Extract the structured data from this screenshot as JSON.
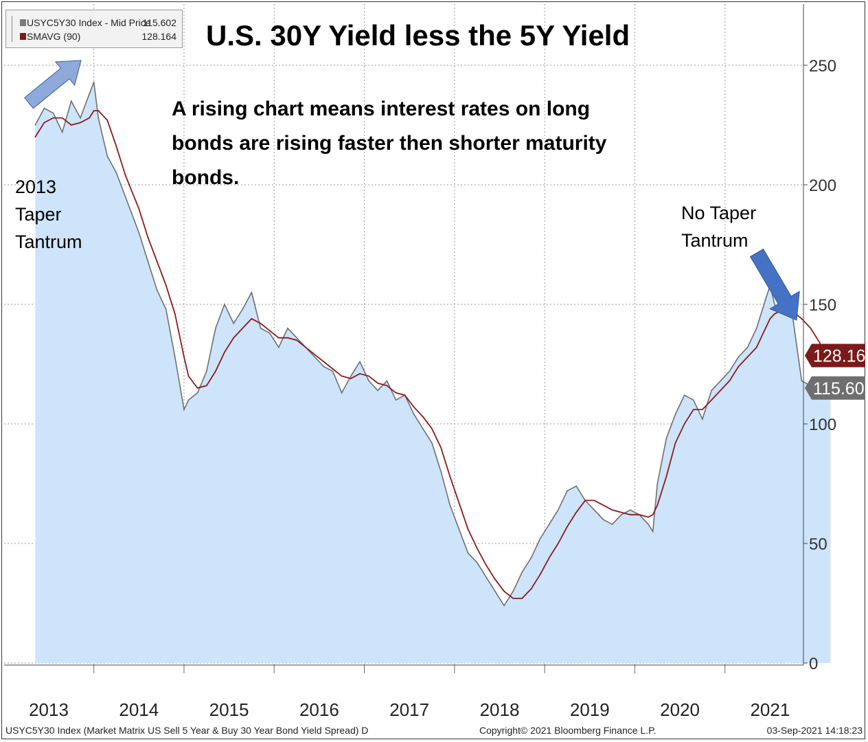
{
  "title": "U.S. 30Y Yield less the 5Y Yield",
  "legend": {
    "items": [
      {
        "label": "USYC5Y30 Index - Mid Price",
        "value": "115.602",
        "color": "#7a7a7a"
      },
      {
        "label": "SMAVG (90)",
        "value": "128.164",
        "color": "#7a1a1a"
      }
    ]
  },
  "annotation": "A rising chart means interest rates on long bonds are rising faster then shorter maturity bonds.",
  "annotation_lines": [
    "A rising chart means interest rates on long",
    "bonds are rising faster then shorter maturity",
    "bonds."
  ],
  "notes": {
    "left": "2013\nTaper\nTantrum",
    "right": "No Taper\nTantrum"
  },
  "footer": {
    "left": "USYC5Y30 Index (Market Matrix US Sell 5 Year & Buy 30 Year Bond Yield Spread)  D",
    "center": "Copyright© 2021 Bloomberg Finance L.P.",
    "right": "03-Sep-2021 14:18:23"
  },
  "colors": {
    "area_fill": "#cde4fb",
    "price_line": "#6f6f6f",
    "smavg_line": "#8b1a1a",
    "arrow_fill": "#4472c4",
    "arrow_fill_light": "#8eaadb",
    "price_tag": "#6f6f6f",
    "smavg_tag": "#7a1a1a"
  },
  "chart_data": {
    "type": "line",
    "title": "U.S. 30Y Yield less the 5Y Yield",
    "xlabel": "",
    "ylabel": "",
    "ylim": [
      0,
      270
    ],
    "yticks": [
      0,
      50,
      100,
      150,
      200,
      250
    ],
    "xlim": [
      2012.85,
      2021.7
    ],
    "xticks": [
      2013,
      2014,
      2015,
      2016,
      2017,
      2018,
      2019,
      2020,
      2021
    ],
    "grid": true,
    "legend_position": "top-left",
    "last_value_tags": [
      {
        "series": "SMAVG (90)",
        "value": "128.164"
      },
      {
        "series": "USYC5Y30 Index - Mid Price",
        "value": "115.602"
      }
    ],
    "series": [
      {
        "name": "USYC5Y30 Index - Mid Price",
        "style": "area",
        "x": [
          2012.85,
          2012.95,
          2013.05,
          2013.15,
          2013.25,
          2013.35,
          2013.45,
          2013.5,
          2013.55,
          2013.65,
          2013.75,
          2013.85,
          2014.0,
          2014.1,
          2014.2,
          2014.3,
          2014.4,
          2014.5,
          2014.55,
          2014.65,
          2014.75,
          2014.85,
          2014.95,
          2015.05,
          2015.15,
          2015.25,
          2015.35,
          2015.45,
          2015.55,
          2015.65,
          2015.75,
          2015.85,
          2015.95,
          2016.05,
          2016.15,
          2016.25,
          2016.35,
          2016.45,
          2016.55,
          2016.65,
          2016.75,
          2016.85,
          2016.95,
          2017.05,
          2017.15,
          2017.25,
          2017.35,
          2017.45,
          2017.55,
          2017.65,
          2017.75,
          2017.85,
          2017.95,
          2018.05,
          2018.15,
          2018.25,
          2018.35,
          2018.45,
          2018.55,
          2018.65,
          2018.75,
          2018.85,
          2018.95,
          2019.05,
          2019.15,
          2019.25,
          2019.35,
          2019.45,
          2019.55,
          2019.65,
          2019.7,
          2019.75,
          2019.85,
          2019.95,
          2020.05,
          2020.15,
          2020.25,
          2020.35,
          2020.45,
          2020.55,
          2020.65,
          2020.75,
          2020.85,
          2020.95,
          2021.0,
          2021.05,
          2021.1,
          2021.15,
          2021.25,
          2021.35,
          2021.45,
          2021.55,
          2021.6,
          2021.67
        ],
        "y": [
          225,
          232,
          230,
          222,
          235,
          228,
          238,
          243,
          228,
          212,
          205,
          195,
          180,
          168,
          156,
          148,
          128,
          106,
          110,
          113,
          122,
          140,
          150,
          142,
          148,
          155,
          140,
          138,
          132,
          140,
          136,
          132,
          128,
          124,
          122,
          113,
          120,
          126,
          118,
          114,
          118,
          110,
          112,
          104,
          98,
          92,
          80,
          66,
          56,
          46,
          42,
          36,
          30,
          24,
          30,
          38,
          44,
          52,
          58,
          64,
          72,
          74,
          68,
          64,
          60,
          58,
          62,
          64,
          62,
          58,
          55,
          75,
          94,
          104,
          112,
          110,
          102,
          114,
          118,
          122,
          128,
          132,
          140,
          152,
          158,
          150,
          148,
          154,
          145,
          118,
          116,
          112,
          114,
          115.6
        ]
      },
      {
        "name": "SMAVG (90)",
        "style": "line",
        "x": [
          2012.85,
          2012.95,
          2013.05,
          2013.15,
          2013.25,
          2013.35,
          2013.45,
          2013.5,
          2013.55,
          2013.65,
          2013.75,
          2013.85,
          2014.0,
          2014.1,
          2014.2,
          2014.3,
          2014.4,
          2014.5,
          2014.55,
          2014.65,
          2014.75,
          2014.85,
          2014.95,
          2015.05,
          2015.15,
          2015.25,
          2015.35,
          2015.45,
          2015.55,
          2015.65,
          2015.75,
          2015.85,
          2015.95,
          2016.05,
          2016.15,
          2016.25,
          2016.35,
          2016.45,
          2016.55,
          2016.65,
          2016.75,
          2016.85,
          2016.95,
          2017.05,
          2017.15,
          2017.25,
          2017.35,
          2017.45,
          2017.55,
          2017.65,
          2017.75,
          2017.85,
          2017.95,
          2018.05,
          2018.15,
          2018.25,
          2018.35,
          2018.45,
          2018.55,
          2018.65,
          2018.75,
          2018.85,
          2018.95,
          2019.05,
          2019.15,
          2019.25,
          2019.35,
          2019.45,
          2019.55,
          2019.65,
          2019.7,
          2019.75,
          2019.85,
          2019.95,
          2020.05,
          2020.15,
          2020.25,
          2020.35,
          2020.45,
          2020.55,
          2020.65,
          2020.75,
          2020.85,
          2020.95,
          2021.0,
          2021.05,
          2021.1,
          2021.15,
          2021.25,
          2021.35,
          2021.45,
          2021.55,
          2021.6,
          2021.67
        ],
        "y": [
          220,
          226,
          228,
          228,
          225,
          226,
          228,
          231,
          231,
          227,
          216,
          204,
          190,
          178,
          168,
          158,
          146,
          128,
          120,
          115,
          116,
          122,
          130,
          136,
          140,
          144,
          142,
          139,
          136,
          136,
          135,
          132,
          129,
          126,
          123,
          120,
          119,
          121,
          120,
          117,
          116,
          113,
          112,
          107,
          103,
          98,
          90,
          78,
          67,
          56,
          48,
          41,
          35,
          30,
          27,
          27,
          31,
          37,
          44,
          50,
          57,
          63,
          68,
          68,
          66,
          64,
          63,
          62,
          62,
          61,
          62,
          66,
          78,
          92,
          100,
          106,
          106,
          110,
          114,
          118,
          124,
          128,
          132,
          140,
          144,
          146,
          147,
          148,
          147,
          144,
          140,
          134,
          130,
          128.2
        ]
      }
    ]
  }
}
